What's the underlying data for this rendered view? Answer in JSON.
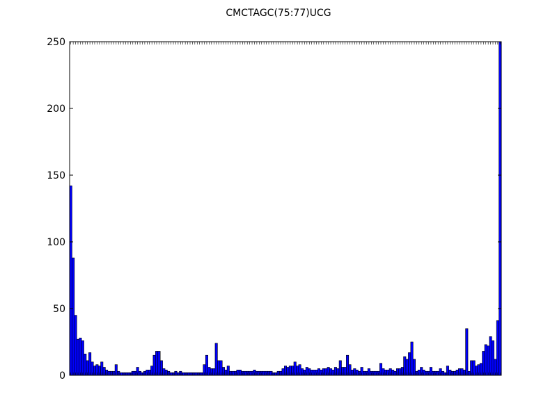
{
  "chart_data": {
    "type": "bar",
    "title": "CMCTAGC(75:77)UCG",
    "values": [
      142,
      88,
      45,
      27,
      28,
      26,
      16,
      11,
      17,
      10,
      7,
      8,
      7,
      10,
      6,
      4,
      3,
      3,
      3,
      8,
      3,
      2,
      2,
      2,
      2,
      2,
      3,
      3,
      6,
      3,
      2,
      3,
      4,
      4,
      7,
      15,
      18,
      18,
      11,
      5,
      4,
      3,
      2,
      2,
      3,
      2,
      3,
      2,
      2,
      2,
      2,
      2,
      2,
      2,
      2,
      2,
      8,
      15,
      6,
      5,
      5,
      24,
      11,
      11,
      6,
      4,
      7,
      3,
      3,
      3,
      4,
      4,
      3,
      3,
      3,
      3,
      3,
      4,
      3,
      3,
      3,
      3,
      3,
      3,
      3,
      2,
      2,
      3,
      3,
      5,
      7,
      6,
      7,
      7,
      10,
      7,
      8,
      5,
      4,
      6,
      5,
      4,
      4,
      4,
      5,
      4,
      5,
      5,
      6,
      5,
      4,
      6,
      5,
      11,
      6,
      6,
      15,
      8,
      4,
      5,
      4,
      3,
      6,
      3,
      3,
      5,
      3,
      3,
      3,
      3,
      9,
      5,
      4,
      4,
      5,
      4,
      3,
      5,
      5,
      6,
      14,
      12,
      17,
      25,
      12,
      3,
      4,
      6,
      4,
      3,
      3,
      6,
      3,
      3,
      3,
      5,
      3,
      2,
      7,
      4,
      3,
      3,
      4,
      5,
      5,
      4,
      35,
      3,
      11,
      11,
      7,
      8,
      9,
      18,
      23,
      22,
      29,
      26,
      12,
      41,
      250
    ],
    "color": "#0000ff",
    "ylim": [
      0,
      250
    ],
    "yticks": [
      0,
      50,
      100,
      150,
      200,
      250
    ]
  }
}
